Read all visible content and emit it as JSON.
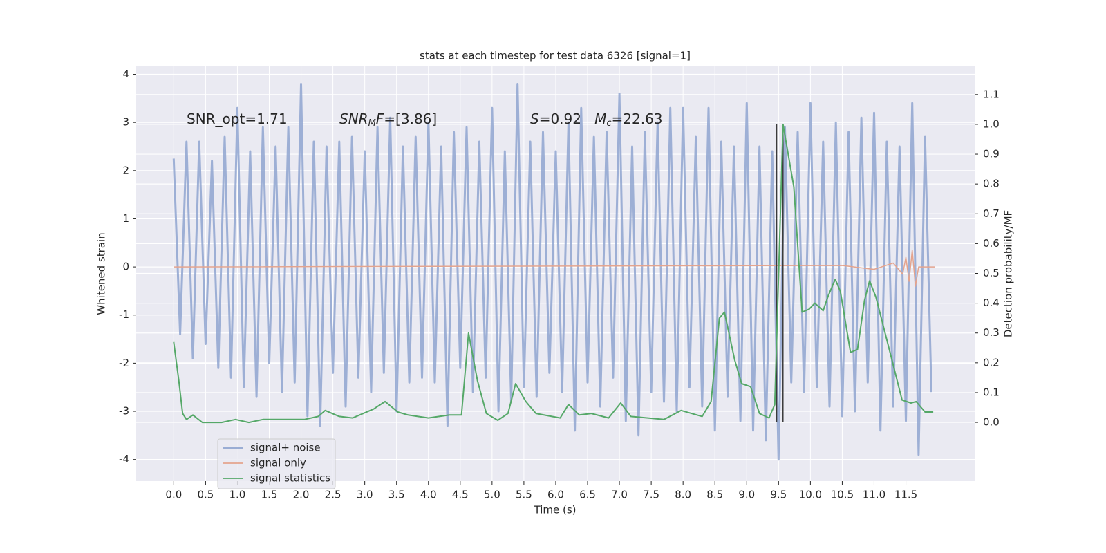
{
  "chart_data": {
    "type": "line",
    "title": "stats at each timestep for test data 6326 [signal=1]",
    "xlabel": "Time (s)",
    "ylabel": "Whitened strain",
    "y2label": "Detection probability/MF",
    "xlim": [
      -0.59,
      12.58
    ],
    "ylim": [
      -4.45,
      4.18
    ],
    "y2lim": [
      -0.197,
      1.197
    ],
    "xticks": [
      {
        "value": 0,
        "label": "0.0"
      },
      0.5,
      {
        "value": 1,
        "label": "1.0"
      },
      1.5,
      {
        "value": 2,
        "label": "2.0"
      },
      2.5,
      {
        "value": 3,
        "label": "3.0"
      },
      3.5,
      {
        "value": 4,
        "label": "4.0"
      },
      4.5,
      {
        "value": 5,
        "label": "5.0"
      },
      5.5,
      {
        "value": 6,
        "label": "6.0"
      },
      6.5,
      {
        "value": 7,
        "label": "7.0"
      },
      7.5,
      {
        "value": 8,
        "label": "8.0"
      },
      8.5,
      {
        "value": 9,
        "label": "9.0"
      },
      9.5,
      {
        "value": 10,
        "label": "10.0"
      },
      10.5,
      {
        "value": 11,
        "label": "11.0"
      },
      11.5
    ],
    "yticks": [
      -4,
      -3,
      -2,
      -1,
      0,
      1,
      2,
      3,
      4
    ],
    "y2ticks": [
      {
        "value": 0,
        "label": "0.0"
      },
      0.1,
      0.2,
      0.3,
      0.4,
      0.5,
      0.6,
      0.7,
      0.8,
      0.9,
      {
        "value": 1,
        "label": "1.0"
      },
      1.1
    ],
    "grid": true,
    "legend": "lower left",
    "annotations": [
      [
        {
          "text": "SNR_opt=1.71",
          "style": "normal"
        }
      ],
      [
        {
          "text": "SNR",
          "style": "italic"
        },
        {
          "text": "M",
          "style": "sub"
        },
        {
          "text": "F",
          "style": "italic"
        },
        {
          "text": "=[3.86]",
          "style": "normal"
        }
      ],
      [
        {
          "text": "S",
          "style": "italic"
        },
        {
          "text": "=0.92   ",
          "style": "normal"
        },
        {
          "text": "M",
          "style": "italic"
        },
        {
          "text": "c",
          "style": "sub"
        },
        {
          "text": "=22.63",
          "style": "normal"
        }
      ]
    ],
    "vlines": {
      "x": [
        9.47,
        9.57
      ],
      "color": "#3a3a3a"
    },
    "vline_ylim": [
      -3.23,
      2.96
    ],
    "series": [
      {
        "name": "signal+ noise",
        "color": "#8fa4d0",
        "x": [
          0.0,
          0.1,
          0.2,
          0.3,
          0.4,
          0.5,
          0.6,
          0.7,
          0.8,
          0.9,
          1.0,
          1.1,
          1.2,
          1.3,
          1.4,
          1.5,
          1.6,
          1.7,
          1.8,
          1.9,
          2.0,
          2.1,
          2.2,
          2.3,
          2.4,
          2.5,
          2.6,
          2.7,
          2.8,
          2.9,
          3.0,
          3.1,
          3.2,
          3.3,
          3.4,
          3.5,
          3.6,
          3.7,
          3.8,
          3.9,
          4.0,
          4.1,
          4.2,
          4.3,
          4.4,
          4.5,
          4.6,
          4.7,
          4.8,
          4.9,
          5.0,
          5.1,
          5.2,
          5.3,
          5.4,
          5.5,
          5.6,
          5.7,
          5.8,
          5.9,
          6.0,
          6.1,
          6.2,
          6.3,
          6.4,
          6.5,
          6.6,
          6.7,
          6.8,
          6.9,
          7.0,
          7.1,
          7.2,
          7.3,
          7.4,
          7.5,
          7.6,
          7.7,
          7.8,
          7.9,
          8.0,
          8.1,
          8.2,
          8.3,
          8.4,
          8.5,
          8.6,
          8.7,
          8.8,
          8.9,
          9.0,
          9.1,
          9.2,
          9.3,
          9.4,
          9.5,
          9.6,
          9.7,
          9.8,
          9.9,
          10.0,
          10.1,
          10.2,
          10.3,
          10.4,
          10.5,
          10.6,
          10.7,
          10.8,
          10.9,
          11.0,
          11.1,
          11.2,
          11.3,
          11.4,
          11.5,
          11.6,
          11.7,
          11.8,
          11.9
        ],
        "values": [
          2.25,
          -1.4,
          2.6,
          -1.9,
          2.6,
          -1.6,
          2.2,
          -2.1,
          2.7,
          -2.3,
          3.3,
          -2.5,
          2.4,
          -2.7,
          2.9,
          -2.0,
          2.5,
          -2.6,
          2.9,
          -2.4,
          3.8,
          -3.1,
          2.6,
          -3.3,
          2.5,
          -2.2,
          2.6,
          -2.9,
          2.7,
          -2.3,
          2.4,
          -2.6,
          2.9,
          -2.2,
          3.1,
          -3.0,
          2.5,
          -2.4,
          2.7,
          -2.3,
          3.0,
          -2.4,
          2.5,
          -3.3,
          2.8,
          -2.1,
          2.9,
          -2.6,
          2.6,
          -2.3,
          3.3,
          -3.0,
          2.4,
          -2.8,
          3.8,
          -2.5,
          2.6,
          -2.7,
          2.8,
          -2.2,
          2.4,
          -2.6,
          3.0,
          -3.4,
          3.3,
          -2.4,
          2.7,
          -2.9,
          2.8,
          -2.3,
          3.6,
          -3.2,
          2.5,
          -3.5,
          2.8,
          -2.6,
          3.0,
          -2.8,
          3.3,
          -3.0,
          3.3,
          -2.5,
          2.7,
          -2.9,
          3.3,
          -3.4,
          2.6,
          -2.7,
          2.5,
          -3.2,
          3.4,
          -3.4,
          2.5,
          -3.6,
          2.4,
          -4.0,
          2.9,
          -2.4,
          2.8,
          -2.6,
          3.4,
          -2.5,
          2.6,
          -2.9,
          3.0,
          -3.1,
          2.8,
          -3.0,
          3.1,
          -2.4,
          3.2,
          -3.4,
          2.6,
          -2.9,
          2.5,
          -3.2,
          3.4,
          -3.9,
          2.7,
          -2.6
        ]
      },
      {
        "name": "signal only",
        "color": "#e4a48e",
        "x": [
          0,
          10.5,
          11.0,
          11.3,
          11.45,
          11.5,
          11.55,
          11.6,
          11.65,
          11.7,
          11.95
        ],
        "values": [
          0,
          0.03,
          -0.05,
          0.08,
          -0.15,
          0.2,
          -0.3,
          0.35,
          -0.4,
          0,
          0
        ]
      },
      {
        "name": "signal statistics",
        "color": "#55a868",
        "axis": "y2",
        "x": [
          0,
          0.08,
          0.14,
          0.2,
          0.3,
          0.45,
          0.75,
          0.97,
          1.18,
          1.4,
          1.84,
          2.05,
          2.27,
          2.38,
          2.6,
          2.81,
          3.14,
          3.32,
          3.52,
          3.68,
          4.0,
          4.33,
          4.52,
          4.63,
          4.77,
          4.91,
          5.09,
          5.25,
          5.37,
          5.53,
          5.69,
          6.07,
          6.2,
          6.37,
          6.56,
          6.83,
          7.02,
          7.18,
          7.7,
          7.97,
          8.3,
          8.44,
          8.57,
          8.65,
          8.81,
          8.92,
          9.06,
          9.2,
          9.35,
          9.44,
          9.57,
          9.74,
          9.87,
          9.98,
          10.07,
          10.2,
          10.28,
          10.39,
          10.47,
          10.63,
          10.74,
          10.85,
          10.93,
          11.03,
          11.28,
          11.44,
          11.58,
          11.66,
          11.8,
          11.93
        ],
        "values": [
          0.27,
          0.14,
          0.03,
          0.01,
          0.025,
          0.0,
          0.0,
          0.01,
          0.0,
          0.01,
          0.01,
          0.01,
          0.02,
          0.04,
          0.02,
          0.015,
          0.045,
          0.07,
          0.035,
          0.025,
          0.015,
          0.025,
          0.025,
          0.3,
          0.14,
          0.03,
          0.007,
          0.03,
          0.13,
          0.07,
          0.03,
          0.015,
          0.06,
          0.025,
          0.03,
          0.015,
          0.065,
          0.02,
          0.01,
          0.04,
          0.02,
          0.07,
          0.35,
          0.37,
          0.21,
          0.13,
          0.12,
          0.03,
          0.015,
          0.06,
          1.0,
          0.79,
          0.37,
          0.38,
          0.4,
          0.375,
          0.425,
          0.48,
          0.44,
          0.235,
          0.245,
          0.41,
          0.475,
          0.42,
          0.21,
          0.075,
          0.065,
          0.07,
          0.035,
          0.035
        ]
      }
    ]
  }
}
